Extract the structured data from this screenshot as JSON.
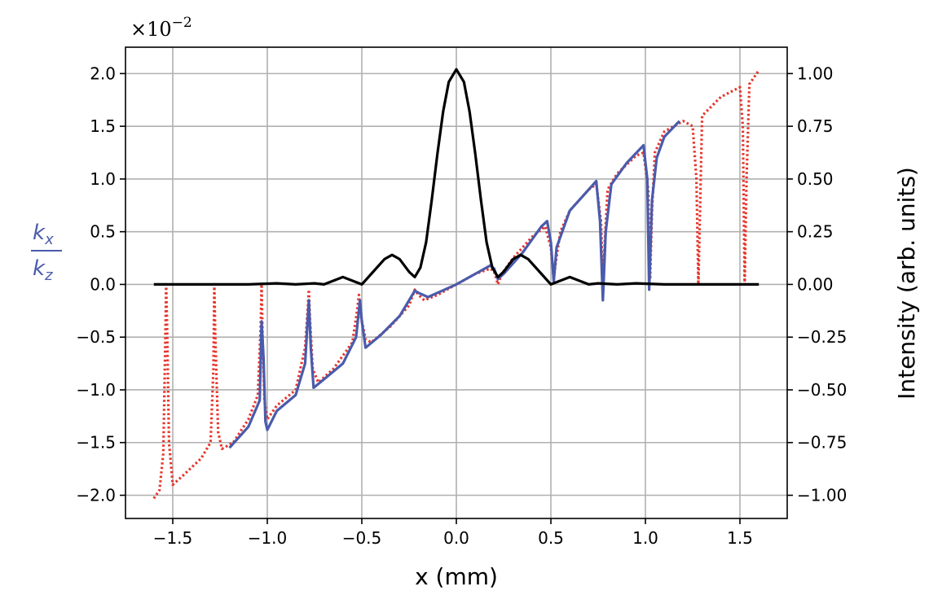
{
  "chart_data": {
    "type": "line",
    "xlabel": "x (mm)",
    "ylabel_left": {
      "numerator": "k",
      "numerator_sub": "x",
      "denominator": "k",
      "denominator_sub": "z",
      "color": "#4a5bab"
    },
    "ylabel_right": "Intensity (arb. units)",
    "y_offset_text": {
      "base": "×10",
      "exponent": "−2"
    },
    "xlim": [
      -1.75,
      1.75
    ],
    "ylim_left": [
      -2.22,
      2.25
    ],
    "ylim_right": [
      -1.11,
      1.125
    ],
    "grid": true,
    "x_ticks": [
      -1.5,
      -1.0,
      -0.5,
      0.0,
      0.5,
      1.0,
      1.5
    ],
    "x_tick_labels": [
      "−1.5",
      "−1.0",
      "−0.5",
      "0.0",
      "0.5",
      "1.0",
      "1.5"
    ],
    "y_ticks_left": [
      -2.0,
      -1.5,
      -1.0,
      -0.5,
      0.0,
      0.5,
      1.0,
      1.5,
      2.0
    ],
    "y_tick_labels_left": [
      "−2.0",
      "−1.5",
      "−1.0",
      "−0.5",
      "0.0",
      "0.5",
      "1.0",
      "1.5",
      "2.0"
    ],
    "y_ticks_right": [
      -1.0,
      -0.75,
      -0.5,
      -0.25,
      0.0,
      0.25,
      0.5,
      0.75,
      1.0
    ],
    "y_tick_labels_right": [
      "−1.00",
      "−0.75",
      "−0.50",
      "−0.25",
      "0.00",
      "0.25",
      "0.50",
      "0.75",
      "1.00"
    ],
    "series": [
      {
        "axis": "left",
        "color": "#e8342a",
        "style": "dotted",
        "points": [
          [
            -1.6,
            -2.03
          ],
          [
            -1.57,
            -1.95
          ],
          [
            -1.55,
            -1.6
          ],
          [
            -1.54,
            -0.6
          ],
          [
            -1.535,
            0.0
          ],
          [
            -1.53,
            -0.4
          ],
          [
            -1.52,
            -1.5
          ],
          [
            -1.5,
            -1.9
          ],
          [
            -1.45,
            -1.82
          ],
          [
            -1.35,
            -1.65
          ],
          [
            -1.3,
            -1.5
          ],
          [
            -1.285,
            -0.8
          ],
          [
            -1.28,
            0.0
          ],
          [
            -1.275,
            -0.5
          ],
          [
            -1.26,
            -1.4
          ],
          [
            -1.24,
            -1.56
          ],
          [
            -1.18,
            -1.5
          ],
          [
            -1.1,
            -1.28
          ],
          [
            -1.05,
            -1.05
          ],
          [
            -1.035,
            -0.4
          ],
          [
            -1.03,
            0.0
          ],
          [
            -1.025,
            -0.5
          ],
          [
            -1.015,
            -1.1
          ],
          [
            -1.0,
            -1.28
          ],
          [
            -0.95,
            -1.15
          ],
          [
            -0.85,
            -1.0
          ],
          [
            -0.8,
            -0.6
          ],
          [
            -0.785,
            -0.2
          ],
          [
            -0.78,
            -0.05
          ],
          [
            -0.775,
            -0.3
          ],
          [
            -0.76,
            -0.8
          ],
          [
            -0.73,
            -0.93
          ],
          [
            -0.65,
            -0.8
          ],
          [
            -0.55,
            -0.55
          ],
          [
            -0.525,
            -0.25
          ],
          [
            -0.515,
            -0.1
          ],
          [
            -0.505,
            -0.3
          ],
          [
            -0.48,
            -0.52
          ],
          [
            -0.45,
            -0.55
          ],
          [
            -0.35,
            -0.4
          ],
          [
            -0.25,
            -0.2
          ],
          [
            -0.22,
            -0.05
          ],
          [
            -0.2,
            -0.1
          ],
          [
            -0.17,
            -0.15
          ],
          [
            -0.1,
            -0.1
          ],
          [
            0.0,
            0.0
          ],
          [
            0.1,
            0.1
          ],
          [
            0.18,
            0.15
          ],
          [
            0.2,
            0.12
          ],
          [
            0.22,
            0.0
          ],
          [
            0.24,
            0.1
          ],
          [
            0.3,
            0.25
          ],
          [
            0.4,
            0.45
          ],
          [
            0.47,
            0.55
          ],
          [
            0.5,
            0.35
          ],
          [
            0.515,
            0.05
          ],
          [
            0.525,
            0.2
          ],
          [
            0.55,
            0.5
          ],
          [
            0.6,
            0.7
          ],
          [
            0.7,
            0.9
          ],
          [
            0.74,
            0.95
          ],
          [
            0.765,
            0.6
          ],
          [
            0.775,
            0.0
          ],
          [
            0.785,
            0.4
          ],
          [
            0.8,
            0.9
          ],
          [
            0.85,
            1.05
          ],
          [
            0.95,
            1.22
          ],
          [
            0.99,
            1.25
          ],
          [
            1.015,
            0.9
          ],
          [
            1.025,
            0.05
          ],
          [
            1.035,
            0.7
          ],
          [
            1.05,
            1.25
          ],
          [
            1.1,
            1.45
          ],
          [
            1.2,
            1.55
          ],
          [
            1.25,
            1.5
          ],
          [
            1.27,
            1.0
          ],
          [
            1.28,
            0.0
          ],
          [
            1.29,
            0.8
          ],
          [
            1.3,
            1.6
          ],
          [
            1.4,
            1.78
          ],
          [
            1.5,
            1.87
          ],
          [
            1.515,
            1.5
          ],
          [
            1.525,
            0.0
          ],
          [
            1.535,
            1.0
          ],
          [
            1.55,
            1.9
          ],
          [
            1.6,
            2.03
          ]
        ]
      },
      {
        "axis": "left",
        "color": "#4a5bab",
        "style": "solid",
        "points": [
          [
            -1.2,
            -1.55
          ],
          [
            -1.1,
            -1.35
          ],
          [
            -1.04,
            -1.1
          ],
          [
            -1.03,
            -0.35
          ],
          [
            -1.02,
            -0.7
          ],
          [
            -1.01,
            -1.3
          ],
          [
            -1.0,
            -1.38
          ],
          [
            -0.95,
            -1.2
          ],
          [
            -0.85,
            -1.05
          ],
          [
            -0.8,
            -0.75
          ],
          [
            -0.78,
            -0.15
          ],
          [
            -0.77,
            -0.6
          ],
          [
            -0.755,
            -0.98
          ],
          [
            -0.7,
            -0.9
          ],
          [
            -0.6,
            -0.75
          ],
          [
            -0.53,
            -0.5
          ],
          [
            -0.51,
            -0.15
          ],
          [
            -0.5,
            -0.35
          ],
          [
            -0.48,
            -0.6
          ],
          [
            -0.4,
            -0.48
          ],
          [
            -0.3,
            -0.3
          ],
          [
            -0.25,
            -0.15
          ],
          [
            -0.22,
            -0.06
          ],
          [
            -0.2,
            -0.08
          ],
          [
            -0.15,
            -0.12
          ],
          [
            -0.1,
            -0.08
          ],
          [
            0.0,
            0.0
          ],
          [
            0.1,
            0.1
          ],
          [
            0.18,
            0.18
          ],
          [
            0.2,
            0.15
          ],
          [
            0.22,
            0.05
          ],
          [
            0.25,
            0.1
          ],
          [
            0.35,
            0.3
          ],
          [
            0.45,
            0.55
          ],
          [
            0.48,
            0.6
          ],
          [
            0.5,
            0.4
          ],
          [
            0.515,
            0.03
          ],
          [
            0.53,
            0.35
          ],
          [
            0.6,
            0.7
          ],
          [
            0.7,
            0.9
          ],
          [
            0.74,
            0.98
          ],
          [
            0.76,
            0.6
          ],
          [
            0.775,
            -0.15
          ],
          [
            0.79,
            0.5
          ],
          [
            0.82,
            0.95
          ],
          [
            0.9,
            1.15
          ],
          [
            0.99,
            1.32
          ],
          [
            1.01,
            1.0
          ],
          [
            1.02,
            -0.05
          ],
          [
            1.035,
            0.8
          ],
          [
            1.06,
            1.2
          ],
          [
            1.1,
            1.4
          ],
          [
            1.18,
            1.55
          ]
        ]
      },
      {
        "axis": "right",
        "color": "#000000",
        "style": "solid",
        "points": [
          [
            -1.6,
            0.0
          ],
          [
            -1.5,
            0.0
          ],
          [
            -1.1,
            0.0
          ],
          [
            -0.95,
            0.005
          ],
          [
            -0.85,
            0.0
          ],
          [
            -0.75,
            0.005
          ],
          [
            -0.7,
            0.0
          ],
          [
            -0.6,
            0.035
          ],
          [
            -0.5,
            0.0
          ],
          [
            -0.45,
            0.05
          ],
          [
            -0.38,
            0.12
          ],
          [
            -0.34,
            0.14
          ],
          [
            -0.3,
            0.12
          ],
          [
            -0.25,
            0.06
          ],
          [
            -0.22,
            0.035
          ],
          [
            -0.19,
            0.08
          ],
          [
            -0.16,
            0.2
          ],
          [
            -0.13,
            0.4
          ],
          [
            -0.1,
            0.62
          ],
          [
            -0.07,
            0.82
          ],
          [
            -0.04,
            0.96
          ],
          [
            0.0,
            1.02
          ],
          [
            0.04,
            0.96
          ],
          [
            0.07,
            0.82
          ],
          [
            0.1,
            0.62
          ],
          [
            0.13,
            0.4
          ],
          [
            0.16,
            0.2
          ],
          [
            0.19,
            0.08
          ],
          [
            0.22,
            0.035
          ],
          [
            0.25,
            0.06
          ],
          [
            0.3,
            0.12
          ],
          [
            0.34,
            0.14
          ],
          [
            0.38,
            0.12
          ],
          [
            0.45,
            0.05
          ],
          [
            0.5,
            0.0
          ],
          [
            0.6,
            0.035
          ],
          [
            0.7,
            0.0
          ],
          [
            0.75,
            0.005
          ],
          [
            0.85,
            0.0
          ],
          [
            0.95,
            0.005
          ],
          [
            1.1,
            0.0
          ],
          [
            1.5,
            0.0
          ],
          [
            1.6,
            0.0
          ]
        ]
      }
    ]
  }
}
